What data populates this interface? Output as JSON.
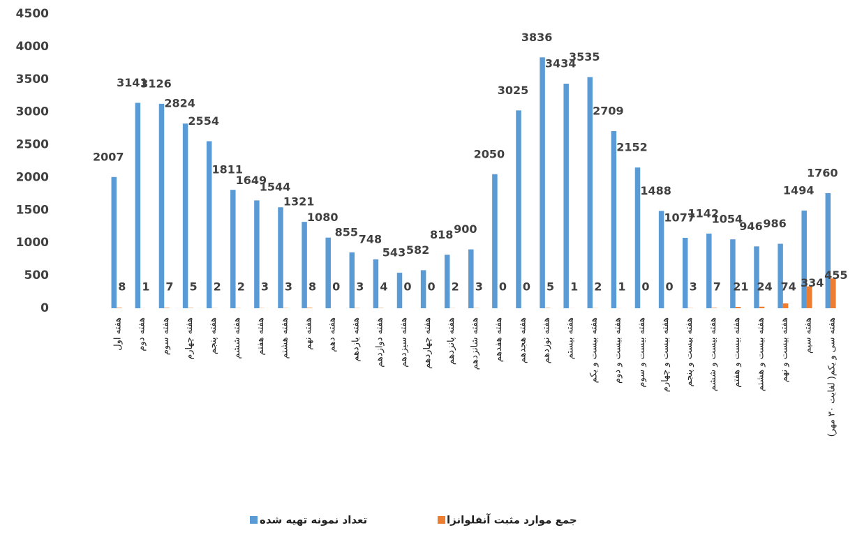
{
  "chart_data": {
    "type": "bar",
    "categories": [
      "هفته اول",
      "هفته دوم",
      "هفته سوم",
      "هفته چهارم",
      "هفته پنجم",
      "هفته ششم",
      "هفته هفتم",
      "هفته هشتم",
      "هفته نهم",
      "هفته دهم",
      "هفته یازدهم",
      "هفته دوازدهم",
      "هفته سیزدهم",
      "هفته چهاردهم",
      "هفته پانزدهم",
      "هفته شانزدهم",
      "هفته هفدهم",
      "هفته هجدهم",
      "هفته نوزدهم",
      "هفته بیستم",
      "هفته بیست و یکم",
      "هفته بیست و دوم",
      "هفته بیست و سوم",
      "هفته بیست و چهارم",
      "هفته بیست و پنجم",
      "هفته بیست و ششم",
      "هفته بیست و هفتم",
      "هفته بیست و هشتم",
      "هفته بیست و نهم",
      "هفته سیم",
      "هفته سی و یکم( لغایت ۳۰ مهر)"
    ],
    "series": [
      {
        "name": "تعداد نمونه تهیه شده",
        "color": "#5b9bd5",
        "values": [
          2007,
          3141,
          3126,
          2824,
          2554,
          1811,
          1649,
          1544,
          1321,
          1080,
          855,
          748,
          543,
          582,
          818,
          900,
          2050,
          3025,
          3836,
          3434,
          3535,
          2709,
          2152,
          1488,
          1077,
          1142,
          1054,
          946,
          986,
          1494,
          1760
        ]
      },
      {
        "name": "جمع موارد مثبت آنفلوانزا",
        "color": "#ed7d31",
        "values": [
          8,
          1,
          7,
          5,
          2,
          2,
          3,
          3,
          8,
          0,
          3,
          4,
          0,
          0,
          2,
          3,
          0,
          0,
          5,
          1,
          2,
          1,
          0,
          0,
          3,
          7,
          21,
          24,
          74,
          334,
          455
        ]
      }
    ],
    "ylim": [
      0,
      4500
    ],
    "yticks": [
      0,
      500,
      1000,
      1500,
      2000,
      2500,
      3000,
      3500,
      4000,
      4500
    ]
  }
}
